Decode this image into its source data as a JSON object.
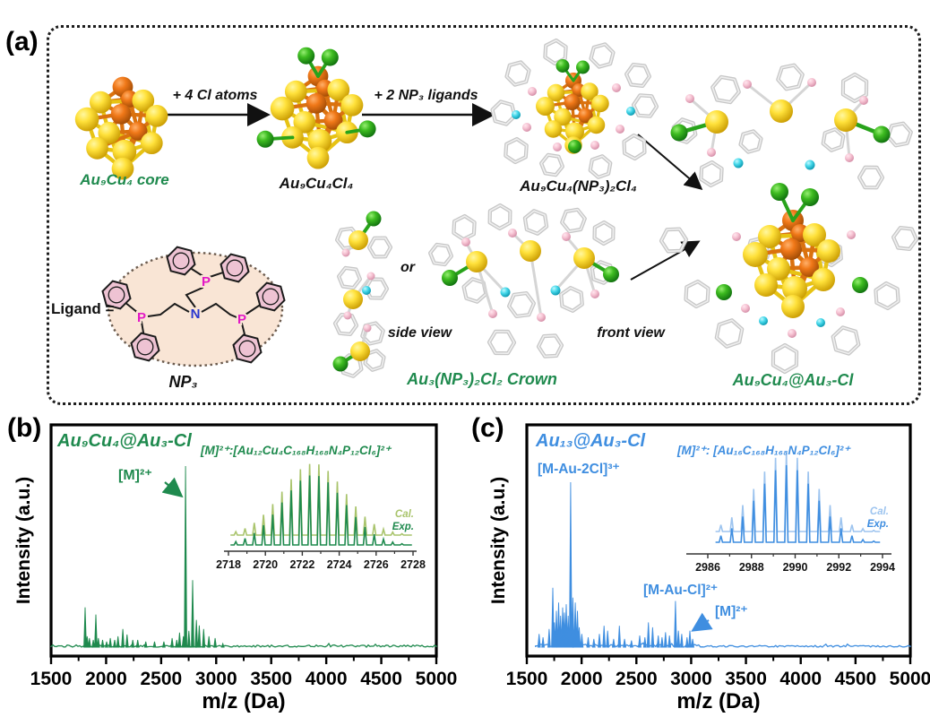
{
  "panel_a": {
    "label": "(a)",
    "core_caption": "Au₉Cu₄ core",
    "step1_label": "+ 4 Cl atoms",
    "cl4_caption": "Au₉Cu₄Cl₄",
    "step2_label": "+ 2 NP₃ ligands",
    "np3cl4_caption": "Au₉Cu₄(NP₃)₂Cl₄",
    "ligand_prefix": "Ligand =",
    "ligand_name": "NP₃",
    "p_symbol": "P",
    "n_symbol": "N",
    "or_label": "or",
    "side_view_label": "side view",
    "front_view_label": "front view",
    "crown_caption": "Au₃(NP₃)₂Cl₂ Crown",
    "product_caption": "Au₉Cu₄@Au₃-Cl",
    "caption_color": "#1f8a4e",
    "atom_colors": {
      "Au": "#f2cf1c",
      "Cu": "#e06a10",
      "Cl": "#2aa11e",
      "P": "#f4b9cb",
      "N": "#35d2e6",
      "C": "#d8d8d8"
    }
  },
  "panel_b_label": "(b)",
  "panel_c_label": "(c)",
  "chart_data": [
    {
      "type": "line",
      "panel": "(b)",
      "title": "Au₉Cu₄@Au₃-Cl",
      "color": "#1f8a4e",
      "xlabel": "m/z (Da)",
      "ylabel": "Intensity (a.u.)",
      "xlim": [
        1500,
        5000
      ],
      "xticks": [
        1500,
        2000,
        2500,
        3000,
        3500,
        4000,
        4500,
        5000
      ],
      "data_start_mz": 1500,
      "peaks": [
        [
          1809,
          0.22
        ],
        [
          1828,
          0.06
        ],
        [
          1848,
          0.05
        ],
        [
          1883,
          0.04
        ],
        [
          1907,
          0.18
        ],
        [
          1930,
          0.05
        ],
        [
          1968,
          0.04
        ],
        [
          2005,
          0.03
        ],
        [
          2038,
          0.05
        ],
        [
          2078,
          0.04
        ],
        [
          2108,
          0.06
        ],
        [
          2152,
          0.1
        ],
        [
          2190,
          0.07
        ],
        [
          2242,
          0.04
        ],
        [
          2287,
          0.04
        ],
        [
          2360,
          0.03
        ],
        [
          2440,
          0.03
        ],
        [
          2525,
          0.03
        ],
        [
          2600,
          0.05
        ],
        [
          2642,
          0.04
        ],
        [
          2667,
          0.08
        ],
        [
          2702,
          0.06
        ],
        [
          2722,
          1.0
        ],
        [
          2752,
          0.09
        ],
        [
          2786,
          0.37
        ],
        [
          2820,
          0.15
        ],
        [
          2846,
          0.12
        ],
        [
          2886,
          0.1
        ],
        [
          2934,
          0.06
        ],
        [
          2990,
          0.05
        ],
        [
          3060,
          0.02
        ]
      ],
      "annotations": [
        {
          "text": "[M]²⁺",
          "mz": 2722
        }
      ],
      "inset": {
        "formula": "[M]²⁺:[Au₁₂Cu₄C₁₆₈H₁₆₈N₄P₁₂Cl₆]²⁺",
        "xticks": [
          2718,
          2720,
          2722,
          2724,
          2726,
          2728
        ],
        "isotope_center": 2722.6,
        "isotope_spacing": 0.5,
        "sigma": 1.7,
        "range": [
          2718.4,
          2727.6
        ],
        "series": [
          {
            "name": "Cal.",
            "color": "#a9c46c"
          },
          {
            "name": "Exp.",
            "color": "#1f8a4e"
          }
        ]
      }
    },
    {
      "type": "line",
      "panel": "(c)",
      "title": "Au₁₃@Au₃-Cl",
      "color": "#3f8ee0",
      "xlabel": "m/z (Da)",
      "ylabel": "Intensity (a.u.)",
      "xlim": [
        1500,
        5000
      ],
      "xticks": [
        1500,
        2000,
        2500,
        3000,
        3500,
        4000,
        4500,
        5000
      ],
      "data_start_mz": 1580,
      "peaks": [
        [
          1612,
          0.08
        ],
        [
          1648,
          0.06
        ],
        [
          1704,
          0.11
        ],
        [
          1737,
          0.36
        ],
        [
          1752,
          0.15
        ],
        [
          1770,
          0.22
        ],
        [
          1790,
          0.27
        ],
        [
          1808,
          0.19
        ],
        [
          1827,
          0.24
        ],
        [
          1843,
          0.21
        ],
        [
          1860,
          0.26
        ],
        [
          1878,
          0.19
        ],
        [
          1900,
          1.0
        ],
        [
          1920,
          0.3
        ],
        [
          1942,
          0.27
        ],
        [
          1962,
          0.22
        ],
        [
          1978,
          0.12
        ],
        [
          2002,
          0.08
        ],
        [
          2060,
          0.06
        ],
        [
          2112,
          0.05
        ],
        [
          2162,
          0.08
        ],
        [
          2205,
          0.13
        ],
        [
          2238,
          0.1
        ],
        [
          2292,
          0.05
        ],
        [
          2345,
          0.13
        ],
        [
          2392,
          0.05
        ],
        [
          2455,
          0.04
        ],
        [
          2530,
          0.07
        ],
        [
          2578,
          0.06
        ],
        [
          2610,
          0.15
        ],
        [
          2648,
          0.12
        ],
        [
          2700,
          0.07
        ],
        [
          2734,
          0.06
        ],
        [
          2766,
          0.09
        ],
        [
          2802,
          0.07
        ],
        [
          2857,
          0.28
        ],
        [
          2884,
          0.1
        ],
        [
          2914,
          0.08
        ],
        [
          2962,
          0.06
        ],
        [
          2988,
          0.1
        ],
        [
          3014,
          0.05
        ]
      ],
      "annotations": [
        {
          "text": "[M-Au-2Cl]³⁺",
          "mz": 1900
        },
        {
          "text": "[M-Au-Cl]²⁺",
          "mz": 2857
        },
        {
          "text": "[M]²⁺",
          "mz": 2988
        }
      ],
      "inset": {
        "formula": "[M]²⁺: [Au₁₆C₁₆₈H₁₆₈N₄P₁₂Cl₆]²⁺",
        "xticks": [
          2986,
          2988,
          2990,
          2992,
          2994
        ],
        "isotope_center": 2989.6,
        "isotope_spacing": 0.5,
        "sigma": 1.35,
        "range": [
          2986.6,
          2993.6
        ],
        "series": [
          {
            "name": "Cal.",
            "color": "#9dc4ef"
          },
          {
            "name": "Exp.",
            "color": "#3f8ee0"
          }
        ]
      }
    }
  ]
}
